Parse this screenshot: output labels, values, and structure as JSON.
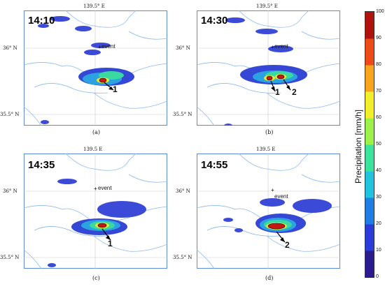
{
  "panels": [
    {
      "time": "14:10",
      "caption": "(a)",
      "lon": "139.5° E",
      "lat36": "36° N",
      "lat355": "35.5° N",
      "event": "event",
      "labels": [
        "1"
      ]
    },
    {
      "time": "14:30",
      "caption": "(b)",
      "lon": "139.5° E",
      "lat36": "36° N",
      "lat355": "35.5° N",
      "event": "event",
      "labels": [
        "1",
        "2"
      ]
    },
    {
      "time": "14:35",
      "caption": "(c)",
      "lon": "139.5 E",
      "lat36": "36° N",
      "lat355": "35.5° N",
      "event": "event",
      "labels": [
        "1"
      ]
    },
    {
      "time": "14:55",
      "caption": "(d)",
      "lon": "139.5 E",
      "lat36": "36° N",
      "lat355": "35.5° N",
      "event": "event",
      "labels": [
        "2"
      ]
    }
  ],
  "colorbar": {
    "title": "Precipitation [mm/h]",
    "ticks": [
      "100",
      "90",
      "80",
      "70",
      "60",
      "50",
      "40",
      "30",
      "20",
      "10",
      "0"
    ],
    "colors": [
      "#2c1b8f",
      "#2b3bd8",
      "#1f7ee6",
      "#20c4dd",
      "#3ce39c",
      "#9ef04a",
      "#f2ee2a",
      "#f7a51d",
      "#ee4a18",
      "#b0120e"
    ]
  }
}
